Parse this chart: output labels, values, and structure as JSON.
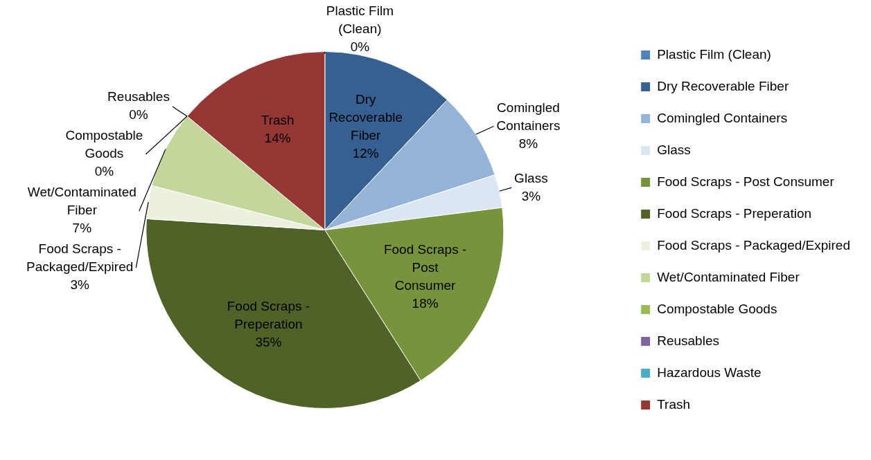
{
  "chart_data": {
    "type": "pie",
    "categories": [
      "Plastic Film (Clean)",
      "Dry Recoverable Fiber",
      "Comingled Containers",
      "Glass",
      "Food Scraps - Post Consumer",
      "Food Scraps - Preperation",
      "Food Scraps - Packaged/Expired",
      "Wet/Contaminated Fiber",
      "Compostable Goods",
      "Reusables",
      "Hazardous Waste",
      "Trash"
    ],
    "values": [
      0,
      12,
      8,
      3,
      18,
      35,
      3,
      7,
      0,
      0,
      0,
      14
    ],
    "colors": [
      "#4f81bd",
      "#376092",
      "#95b3d7",
      "#dce6f2",
      "#77933c",
      "#4f6228",
      "#ebf1de",
      "#c3d69b",
      "#9bbb59",
      "#8064a2",
      "#4bacc6",
      "#953735"
    ],
    "value_labels": [
      "0%",
      "12%",
      "8%",
      "3%",
      "18%",
      "35%",
      "3%",
      "7%",
      "0%",
      "0%",
      null,
      "14%"
    ],
    "legend": "right"
  }
}
